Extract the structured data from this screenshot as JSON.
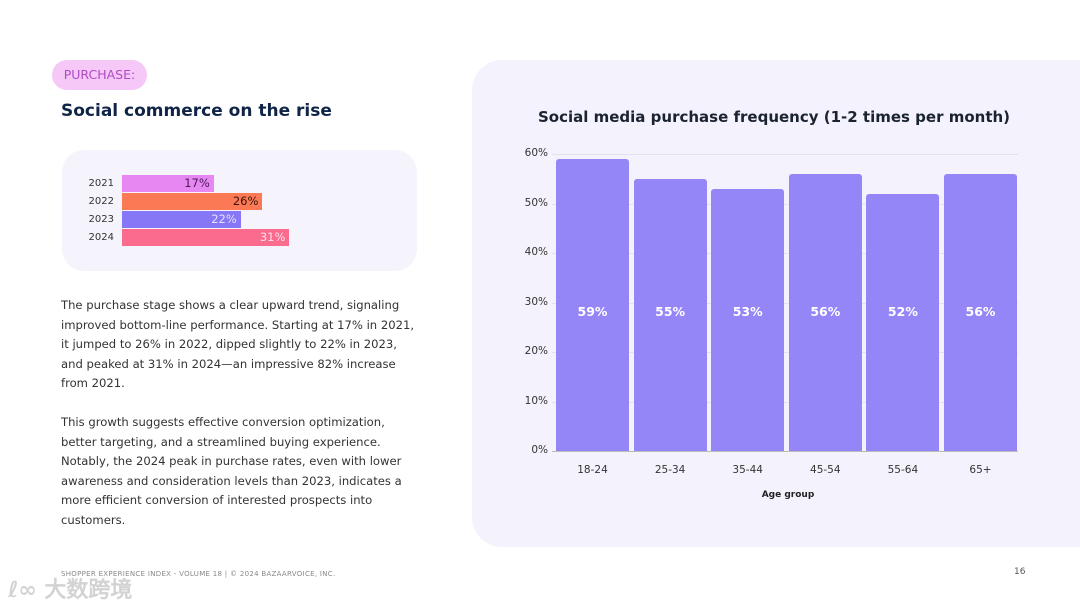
{
  "tag": "PURCHASE:",
  "title": "Social commerce on the rise",
  "mini_chart": {
    "type": "bar",
    "orientation": "horizontal",
    "categories": [
      "2021",
      "2022",
      "2023",
      "2024"
    ],
    "values": [
      17,
      26,
      22,
      31
    ],
    "labels": [
      "17%",
      "26%",
      "22%",
      "31%"
    ],
    "colors": [
      "#e687f2",
      "#fb7a55",
      "#8677f7",
      "#fb6b8e"
    ],
    "label_colors": [
      "#4a1a5a",
      "#3a1208",
      "#e4e0ff",
      "#ffe0ea"
    ]
  },
  "body": [
    "The purchase stage shows a clear upward trend, signaling improved bottom-line performance. Starting at 17% in 2021, it jumped to 26% in 2022, dipped slightly to 22% in 2023, and peaked at 31% in 2024—an impressive 82% increase from 2021.",
    "This growth suggests effective conversion optimization, better targeting, and a streamlined buying experience. Notably, the 2024 peak in purchase rates, even with lower awareness and consideration levels than 2023, indicates a more efficient conversion of interested prospects into customers."
  ],
  "chart_data": {
    "type": "bar",
    "title": "Social media purchase frequency (1-2 times per month)",
    "xlabel": "Age group",
    "ylabel": "",
    "categories": [
      "18-24",
      "25-34",
      "35-44",
      "45-54",
      "55-64",
      "65+"
    ],
    "values": [
      59,
      55,
      53,
      56,
      52,
      56
    ],
    "labels": [
      "59%",
      "55%",
      "53%",
      "56%",
      "52%",
      "56%"
    ],
    "ylim": [
      0,
      60
    ],
    "yticks": [
      "0%",
      "10%",
      "20%",
      "30%",
      "40%",
      "50%",
      "60%"
    ],
    "grid": true,
    "color": "#9586f7"
  },
  "footer": "SHOPPER EXPERIENCE INDEX - VOLUME 18  |  © 2024 BAZAARVOICE, INC.",
  "page_number": "16",
  "watermark": "大数跨境"
}
